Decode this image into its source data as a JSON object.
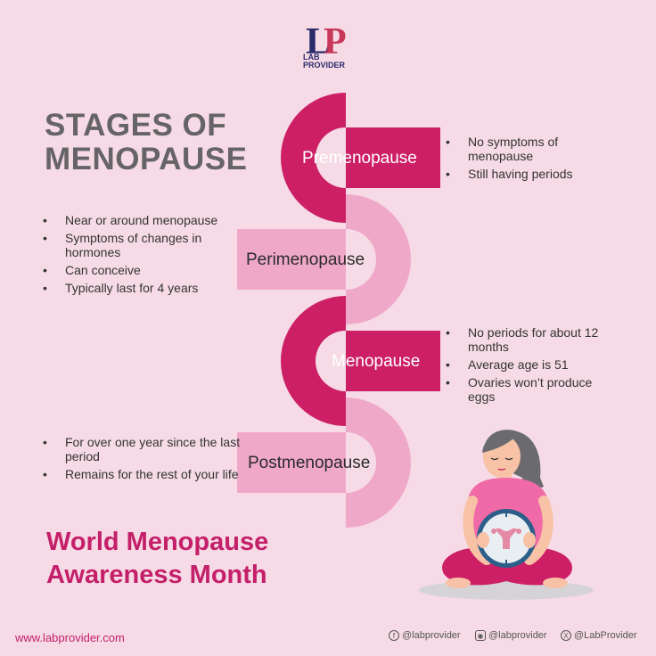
{
  "logo": {
    "line1": "LAB",
    "line2": "PROVIDER"
  },
  "title": {
    "line1": "STAGES OF",
    "line2": "MENOPAUSE"
  },
  "stages": [
    {
      "label": "Premenopause",
      "bullets": [
        "No symptoms of menopause",
        "Still having periods"
      ]
    },
    {
      "label": "Perimenopause",
      "bullets": [
        "Near or around menopause",
        "Symptoms of changes in hormones",
        "Can conceive",
        "Typically last for 4 years"
      ]
    },
    {
      "label": "Menopause",
      "bullets": [
        "No periods for about 12 months",
        "Average age is 51",
        "Ovaries won’t produce eggs"
      ]
    },
    {
      "label": "Postmenopause",
      "bullets": [
        "For over one year since the last period",
        "Remains for the rest of your life"
      ]
    }
  ],
  "awareness": {
    "line1": "World Menopause",
    "line2": "Awareness Month"
  },
  "footer": {
    "website": "www.labprovider.com",
    "facebook": "@labprovider",
    "instagram": "@labprovider",
    "x": "@LabProvider"
  },
  "colors": {
    "dark_pink": "#cc1f66",
    "light_pink": "#f0a8c9",
    "background": "#f6dbe6",
    "title_gray": "#666466"
  },
  "icons": [
    "lab-provider-logo",
    "facebook-icon",
    "instagram-icon",
    "x-icon",
    "woman-illustration",
    "uterus-icon"
  ]
}
